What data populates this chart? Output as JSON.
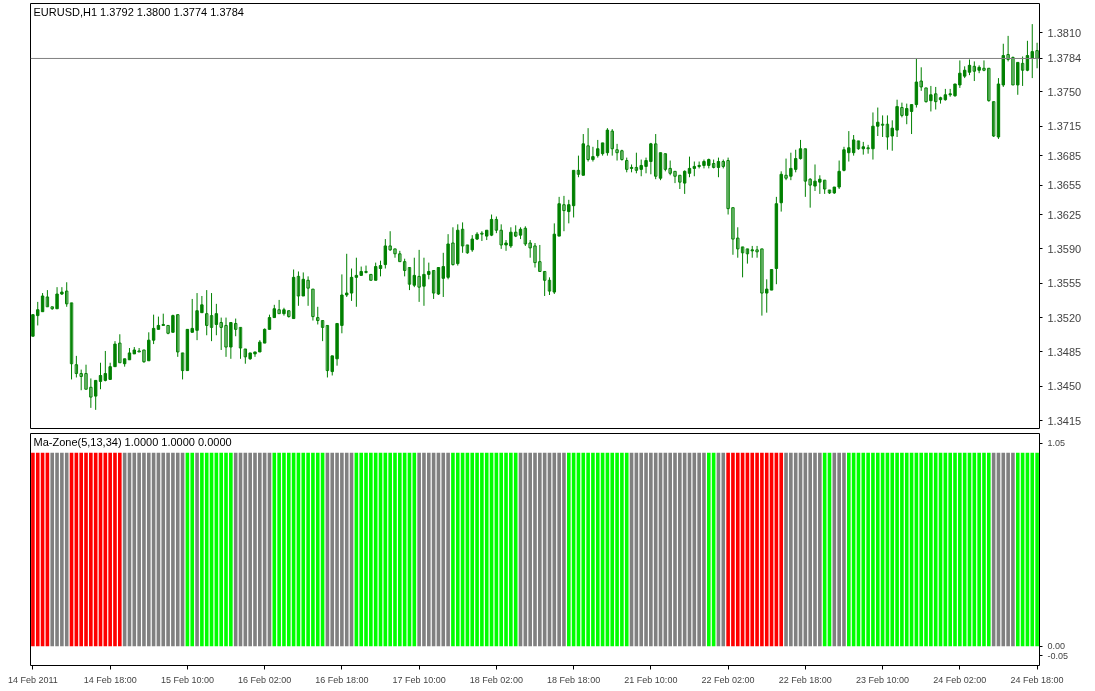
{
  "chart_data": [
    {
      "type": "candlestick",
      "title": "EURUSD,H1  1.3792 1.3800 1.3774 1.3784",
      "color": "#008000",
      "tick_labels": "y",
      "ylim": [
        1.3407,
        1.384
      ],
      "yticks": [
        1.3415,
        {
          "value": 1.345,
          "label": "1.3450"
        },
        1.3485,
        {
          "value": 1.352,
          "label": "1.3520"
        },
        1.3555,
        {
          "value": 1.359,
          "label": "1.3590"
        },
        1.3625,
        1.3655,
        1.3685,
        1.3715,
        {
          "value": 1.375,
          "label": "1.3750"
        },
        {
          "value": 1.381,
          "label": "1.3810"
        }
      ],
      "ref_lines": [
        {
          "axis": "y",
          "value": 1.3784,
          "label": "1.3784",
          "color": "#808080"
        }
      ],
      "categories": [
        null,
        null,
        null,
        null,
        null,
        null,
        null,
        null,
        null,
        null,
        null,
        null,
        null,
        null,
        null,
        null,
        null,
        null,
        null,
        null,
        null,
        null,
        null,
        null,
        null,
        null,
        null,
        null,
        null,
        null,
        null,
        null,
        null,
        null,
        null,
        null,
        null,
        null,
        null,
        null,
        null,
        null,
        null,
        null,
        null,
        null,
        null,
        null,
        null,
        null,
        null,
        null,
        null,
        null,
        null,
        null,
        null,
        null,
        null,
        null,
        null,
        null,
        null,
        null,
        null,
        null,
        null,
        null,
        null,
        null,
        null,
        null,
        null,
        null,
        null,
        null,
        null,
        null,
        null,
        null,
        null,
        null,
        null,
        null,
        null,
        null,
        null,
        null,
        null,
        null,
        null,
        null,
        null,
        null,
        null,
        null,
        null,
        null,
        null,
        null,
        null,
        null,
        null,
        null,
        null,
        null,
        null,
        null,
        null,
        null,
        null,
        null,
        null,
        null,
        null,
        null,
        null,
        null,
        null,
        null,
        null,
        null,
        null,
        null,
        null,
        null,
        null,
        null,
        null,
        null,
        null,
        null,
        null,
        null,
        null,
        null,
        null,
        null,
        null,
        null,
        null,
        null,
        null,
        null,
        null,
        null,
        null,
        null,
        null,
        null,
        null,
        null,
        null,
        null,
        null,
        null,
        null,
        null,
        null,
        null,
        null,
        null,
        null,
        null,
        null,
        null,
        null,
        null,
        null,
        null,
        null,
        null,
        null,
        null,
        null,
        null,
        null,
        null,
        null,
        null,
        null,
        null,
        null,
        null,
        null,
        null,
        null,
        null,
        null,
        null,
        null,
        null,
        null,
        null,
        null,
        null,
        null,
        null,
        null,
        null,
        null,
        null,
        null,
        null,
        null,
        null,
        null,
        null,
        null
      ],
      "ohlc": [
        [
          1.3501,
          1.3523,
          1.3501,
          1.3523
        ],
        [
          1.3522,
          1.3536,
          1.3512,
          1.3528
        ],
        [
          1.3526,
          1.3545,
          1.3526,
          1.3542
        ],
        [
          1.3541,
          1.3548,
          1.3531,
          1.3531
        ],
        [
          1.3531,
          1.3531,
          1.3528,
          1.3529
        ],
        [
          1.3529,
          1.3551,
          1.3529,
          1.3544
        ],
        [
          1.3544,
          1.3551,
          1.3543,
          1.3546
        ],
        [
          1.3547,
          1.3556,
          1.3531,
          1.3534
        ],
        [
          1.3535,
          1.3535,
          1.3457,
          1.3473
        ],
        [
          1.3472,
          1.3481,
          1.3459,
          1.3463
        ],
        [
          1.3463,
          1.3467,
          1.3446,
          1.346
        ],
        [
          1.3463,
          1.3472,
          1.3447,
          1.3447
        ],
        [
          1.3449,
          1.3458,
          1.3428,
          1.3439
        ],
        [
          1.344,
          1.3456,
          1.3426,
          1.3456
        ],
        [
          1.3455,
          1.3474,
          1.3447,
          1.3461
        ],
        [
          1.3456,
          1.3486,
          1.3455,
          1.3463
        ],
        [
          1.3457,
          1.3474,
          1.3457,
          1.347
        ],
        [
          1.347,
          1.3496,
          1.347,
          1.3493
        ],
        [
          1.3494,
          1.3503,
          1.3474,
          1.3474
        ],
        [
          1.3473,
          1.3478,
          1.347,
          1.3478
        ],
        [
          1.3477,
          1.3489,
          1.3477,
          1.3484
        ],
        [
          1.3483,
          1.349,
          1.3483,
          1.3487
        ],
        [
          1.3486,
          1.3489,
          1.3485,
          1.3485
        ],
        [
          1.3487,
          1.3487,
          1.3474,
          1.3475
        ],
        [
          1.3476,
          1.3505,
          1.3476,
          1.3497
        ],
        [
          1.3497,
          1.3523,
          1.3493,
          1.3509
        ],
        [
          1.3508,
          1.3521,
          1.3508,
          1.3512
        ],
        [
          1.3512,
          1.3524,
          1.3512,
          1.3513
        ],
        [
          1.3512,
          1.3512,
          1.3503,
          1.3504
        ],
        [
          1.3505,
          1.3523,
          1.3505,
          1.3522
        ],
        [
          1.3523,
          1.3523,
          1.348,
          1.3485
        ],
        [
          1.3484,
          1.3484,
          1.3457,
          1.3466
        ],
        [
          1.3466,
          1.3508,
          1.3466,
          1.3508
        ],
        [
          1.3505,
          1.3539,
          1.3505,
          1.3509
        ],
        [
          1.3507,
          1.3545,
          1.3497,
          1.3527
        ],
        [
          1.3525,
          1.3542,
          1.3525,
          1.3533
        ],
        [
          1.3524,
          1.3548,
          1.3502,
          1.3512
        ],
        [
          1.3522,
          1.3545,
          1.3496,
          1.351
        ],
        [
          1.3513,
          1.3534,
          1.3502,
          1.3524
        ],
        [
          1.3515,
          1.352,
          1.3487,
          1.351
        ],
        [
          1.3512,
          1.352,
          1.348,
          1.349
        ],
        [
          1.349,
          1.3515,
          1.3478,
          1.3515
        ],
        [
          1.3514,
          1.3519,
          1.3501,
          1.3508
        ],
        [
          1.351,
          1.351,
          1.3478,
          1.3489
        ],
        [
          1.3488,
          1.3488,
          1.3473,
          1.348
        ],
        [
          1.3478,
          1.3484,
          1.3477,
          1.3484
        ],
        [
          1.3483,
          1.3485,
          1.348,
          1.3485
        ],
        [
          1.3485,
          1.3497,
          1.3485,
          1.3495
        ],
        [
          1.3494,
          1.3509,
          1.3494,
          1.3508
        ],
        [
          1.3508,
          1.3523,
          1.3508,
          1.352
        ],
        [
          1.352,
          1.3533,
          1.352,
          1.3529
        ],
        [
          1.3528,
          1.3538,
          1.3524,
          1.3524
        ],
        [
          1.3524,
          1.353,
          1.3522,
          1.3528
        ],
        [
          1.3527,
          1.3527,
          1.352,
          1.3521
        ],
        [
          1.3519,
          1.3569,
          1.3519,
          1.3561
        ],
        [
          1.3562,
          1.3567,
          1.3532,
          1.3542
        ],
        [
          1.3542,
          1.3566,
          1.3542,
          1.3559
        ],
        [
          1.3558,
          1.3562,
          1.3532,
          1.355
        ],
        [
          1.3549,
          1.3549,
          1.3517,
          1.3521
        ],
        [
          1.352,
          1.3531,
          1.3513,
          1.3517
        ],
        [
          1.3517,
          1.3517,
          1.3496,
          1.351
        ],
        [
          1.3512,
          1.3512,
          1.3459,
          1.3466
        ],
        [
          1.3465,
          1.3481,
          1.3461,
          1.3481
        ],
        [
          1.3478,
          1.3514,
          1.3471,
          1.3514
        ],
        [
          1.3512,
          1.3564,
          1.3504,
          1.3543
        ],
        [
          1.3543,
          1.3585,
          1.3541,
          1.3545
        ],
        [
          1.3545,
          1.357,
          1.3537,
          1.3561
        ],
        [
          1.3561,
          1.3581,
          1.3531,
          1.3563
        ],
        [
          1.3563,
          1.3572,
          1.3563,
          1.3567
        ],
        [
          1.3567,
          1.3573,
          1.3565,
          1.3566
        ],
        [
          1.3564,
          1.3564,
          1.3558,
          1.3558
        ],
        [
          1.3558,
          1.3576,
          1.3558,
          1.3572
        ],
        [
          1.357,
          1.3578,
          1.3562,
          1.3573
        ],
        [
          1.3574,
          1.36,
          1.357,
          1.3593
        ],
        [
          1.3593,
          1.3608,
          1.3588,
          1.3589
        ],
        [
          1.359,
          1.359,
          1.3581,
          1.3585
        ],
        [
          1.3585,
          1.3588,
          1.3577,
          1.3577
        ],
        [
          1.3577,
          1.358,
          1.3562,
          1.3568
        ],
        [
          1.3571,
          1.3571,
          1.3548,
          1.3554
        ],
        [
          1.3553,
          1.3581,
          1.3551,
          1.3563
        ],
        [
          1.3562,
          1.3589,
          1.3536,
          1.3551
        ],
        [
          1.3552,
          1.3581,
          1.3532,
          1.3564
        ],
        [
          1.3564,
          1.3576,
          1.3559,
          1.3567
        ],
        [
          1.3568,
          1.3568,
          1.3539,
          1.3545
        ],
        [
          1.3544,
          1.3571,
          1.3543,
          1.3571
        ],
        [
          1.356,
          1.3586,
          1.3541,
          1.3572
        ],
        [
          1.3561,
          1.3605,
          1.3559,
          1.3595
        ],
        [
          1.3596,
          1.3612,
          1.3573,
          1.3574
        ],
        [
          1.3575,
          1.3615,
          1.3573,
          1.3609
        ],
        [
          1.361,
          1.3617,
          1.3586,
          1.3593
        ],
        [
          1.3594,
          1.3594,
          1.3585,
          1.3586
        ],
        [
          1.3589,
          1.3604,
          1.3587,
          1.36
        ],
        [
          1.36,
          1.3607,
          1.3599,
          1.3605
        ],
        [
          1.3606,
          1.3608,
          1.3598,
          1.3605
        ],
        [
          1.3603,
          1.3609,
          1.3599,
          1.3609
        ],
        [
          1.3604,
          1.3625,
          1.3603,
          1.362
        ],
        [
          1.362,
          1.3623,
          1.3606,
          1.3609
        ],
        [
          1.3609,
          1.3615,
          1.359,
          1.3594
        ],
        [
          1.3594,
          1.3599,
          1.3588,
          1.3596
        ],
        [
          1.3593,
          1.3612,
          1.3591,
          1.3607
        ],
        [
          1.3607,
          1.3614,
          1.3602,
          1.3603
        ],
        [
          1.3604,
          1.3612,
          1.36,
          1.361
        ],
        [
          1.3611,
          1.3613,
          1.3593,
          1.3595
        ],
        [
          1.3596,
          1.3599,
          1.3581,
          1.3591
        ],
        [
          1.3593,
          1.3596,
          1.3571,
          1.3576
        ],
        [
          1.3577,
          1.3594,
          1.3567,
          1.3567
        ],
        [
          1.3567,
          1.3567,
          1.3542,
          1.3558
        ],
        [
          1.3558,
          1.3561,
          1.3543,
          1.3547
        ],
        [
          1.3546,
          1.3616,
          1.3544,
          1.3605
        ],
        [
          1.3603,
          1.3643,
          1.3603,
          1.3636
        ],
        [
          1.3635,
          1.3644,
          1.3608,
          1.3629
        ],
        [
          1.3628,
          1.364,
          1.3616,
          1.3635
        ],
        [
          1.3634,
          1.367,
          1.3622,
          1.367
        ],
        [
          1.367,
          1.3685,
          1.3663,
          1.3666
        ],
        [
          1.3665,
          1.3707,
          1.3665,
          1.3697
        ],
        [
          1.3695,
          1.3713,
          1.3679,
          1.3681
        ],
        [
          1.3681,
          1.3694,
          1.3679,
          1.3684
        ],
        [
          1.3685,
          1.3701,
          1.3683,
          1.3692
        ],
        [
          1.3687,
          1.3698,
          1.3685,
          1.3698
        ],
        [
          1.3688,
          1.3713,
          1.3685,
          1.3711
        ],
        [
          1.371,
          1.3712,
          1.3685,
          1.3692
        ],
        [
          1.3691,
          1.3697,
          1.368,
          1.3688
        ],
        [
          1.369,
          1.3691,
          1.368,
          1.3681
        ],
        [
          1.368,
          1.3683,
          1.3668,
          1.3671
        ],
        [
          1.3672,
          1.3676,
          1.3668,
          1.3673
        ],
        [
          1.3673,
          1.3688,
          1.3667,
          1.367
        ],
        [
          1.3671,
          1.3681,
          1.3664,
          1.3675
        ],
        [
          1.3674,
          1.3683,
          1.3667,
          1.368
        ],
        [
          1.3679,
          1.3698,
          1.3666,
          1.3697
        ],
        [
          1.3697,
          1.3707,
          1.3661,
          1.3664
        ],
        [
          1.3662,
          1.3688,
          1.366,
          1.3688
        ],
        [
          1.3687,
          1.3687,
          1.3669,
          1.3671
        ],
        [
          1.3672,
          1.368,
          1.3665,
          1.3667
        ],
        [
          1.3669,
          1.3669,
          1.3657,
          1.3664
        ],
        [
          1.3665,
          1.3665,
          1.3651,
          1.3658
        ],
        [
          1.3657,
          1.367,
          1.3646,
          1.3669
        ],
        [
          1.3667,
          1.3684,
          1.3663,
          1.3672
        ],
        [
          1.3672,
          1.3679,
          1.3664,
          1.3674
        ],
        [
          1.3674,
          1.3679,
          1.3672,
          1.3675
        ],
        [
          1.3675,
          1.3681,
          1.3672,
          1.3679
        ],
        [
          1.3675,
          1.3682,
          1.3672,
          1.3681
        ],
        [
          1.3677,
          1.3681,
          1.3672,
          1.3673
        ],
        [
          1.3673,
          1.3683,
          1.3663,
          1.3679
        ],
        [
          1.3679,
          1.3681,
          1.3672,
          1.3674
        ],
        [
          1.368,
          1.3683,
          1.3625,
          1.3631
        ],
        [
          1.3632,
          1.3632,
          1.3584,
          1.36
        ],
        [
          1.3601,
          1.3612,
          1.3581,
          1.359
        ],
        [
          1.3592,
          1.3592,
          1.3561,
          1.3586
        ],
        [
          1.359,
          1.359,
          1.3575,
          1.3585
        ],
        [
          1.3588,
          1.3593,
          1.3581,
          1.3589
        ],
        [
          1.3589,
          1.3593,
          1.3581,
          1.3587
        ],
        [
          1.359,
          1.359,
          1.3522,
          1.3545
        ],
        [
          1.3545,
          1.3559,
          1.3525,
          1.3549
        ],
        [
          1.3548,
          1.3569,
          1.3548,
          1.3569
        ],
        [
          1.357,
          1.3643,
          1.3554,
          1.3636
        ],
        [
          1.3637,
          1.3669,
          1.3628,
          1.3666
        ],
        [
          1.3665,
          1.3682,
          1.366,
          1.3662
        ],
        [
          1.3664,
          1.3688,
          1.366,
          1.3672
        ],
        [
          1.3671,
          1.3691,
          1.3668,
          1.3682
        ],
        [
          1.3682,
          1.3701,
          1.3681,
          1.3692
        ],
        [
          1.3692,
          1.3692,
          1.3643,
          1.3659
        ],
        [
          1.3661,
          1.3662,
          1.3632,
          1.3655
        ],
        [
          1.3654,
          1.3676,
          1.3649,
          1.3659
        ],
        [
          1.3658,
          1.3665,
          1.3646,
          1.3661
        ],
        [
          1.366,
          1.366,
          1.3646,
          1.3651
        ],
        [
          1.365,
          1.365,
          1.3646,
          1.3647
        ],
        [
          1.3647,
          1.3653,
          1.3646,
          1.3653
        ],
        [
          1.3653,
          1.368,
          1.3651,
          1.3669
        ],
        [
          1.367,
          1.3694,
          1.3669,
          1.3691
        ],
        [
          1.3688,
          1.371,
          1.3679,
          1.3693
        ],
        [
          1.3688,
          1.3706,
          1.3685,
          1.3701
        ],
        [
          1.37,
          1.37,
          1.3691,
          1.3692
        ],
        [
          1.3692,
          1.3699,
          1.3686,
          1.3694
        ],
        [
          1.3693,
          1.3696,
          1.3687,
          1.3692
        ],
        [
          1.3692,
          1.3729,
          1.3681,
          1.3715
        ],
        [
          1.3715,
          1.3734,
          1.3705,
          1.3719
        ],
        [
          1.3717,
          1.3726,
          1.3704,
          1.3716
        ],
        [
          1.3717,
          1.3726,
          1.3691,
          1.3704
        ],
        [
          1.3705,
          1.3721,
          1.369,
          1.3713
        ],
        [
          1.3711,
          1.3742,
          1.3704,
          1.3735
        ],
        [
          1.3734,
          1.3739,
          1.3724,
          1.3726
        ],
        [
          1.3726,
          1.3738,
          1.3717,
          1.3733
        ],
        [
          1.373,
          1.3737,
          1.3707,
          1.3737
        ],
        [
          1.3737,
          1.3784,
          1.3734,
          1.376
        ],
        [
          1.3761,
          1.3775,
          1.3751,
          1.3755
        ],
        [
          1.3754,
          1.3754,
          1.3739,
          1.374
        ],
        [
          1.3741,
          1.3756,
          1.373,
          1.3747
        ],
        [
          1.3748,
          1.3755,
          1.3732,
          1.374
        ],
        [
          1.3742,
          1.3745,
          1.3738,
          1.3744
        ],
        [
          1.3742,
          1.3753,
          1.3741,
          1.3747
        ],
        [
          1.3747,
          1.3753,
          1.3745,
          1.3748
        ],
        [
          1.3746,
          1.3758,
          1.3745,
          1.3758
        ],
        [
          1.3757,
          1.3782,
          1.3754,
          1.3769
        ],
        [
          1.3766,
          1.3776,
          1.3764,
          1.3772
        ],
        [
          1.377,
          1.3783,
          1.3767,
          1.3777
        ],
        [
          1.3776,
          1.3781,
          1.3761,
          1.3771
        ],
        [
          1.3772,
          1.3777,
          1.3769,
          1.3775
        ],
        [
          1.3774,
          1.3782,
          1.3771,
          1.3772
        ],
        [
          1.3774,
          1.3774,
          1.374,
          1.3741
        ],
        [
          1.374,
          1.374,
          1.3704,
          1.3705
        ],
        [
          1.3704,
          1.3764,
          1.3702,
          1.3758
        ],
        [
          1.3757,
          1.3799,
          1.3755,
          1.3787
        ],
        [
          1.3788,
          1.3807,
          1.3781,
          1.3783
        ],
        [
          1.3785,
          1.3786,
          1.3757,
          1.3757
        ],
        [
          1.3757,
          1.378,
          1.3747,
          1.378
        ],
        [
          1.3779,
          1.3786,
          1.3756,
          1.3772
        ],
        [
          1.3772,
          1.3802,
          1.3771,
          1.3787
        ],
        [
          1.3784,
          1.3819,
          1.3764,
          1.3791
        ],
        [
          1.3792,
          1.38,
          1.3774,
          1.3784
        ]
      ]
    },
    {
      "type": "bar",
      "title": "Ma-Zone(5,13,34) 1.0000 1.0000 0.0000",
      "ylim": [
        -0.1,
        1.1
      ],
      "yticks": [
        1.05,
        {
          "value": 0,
          "label": "0.00"
        },
        -0.05
      ],
      "categories": [
        "14 Feb 2011",
        null,
        null,
        null,
        null,
        null,
        null,
        null,
        null,
        null,
        null,
        null,
        null,
        null,
        null,
        null,
        "14 Feb 18:00",
        null,
        null,
        null,
        null,
        null,
        null,
        null,
        null,
        null,
        null,
        null,
        null,
        null,
        null,
        null,
        "15 Feb 10:00",
        null,
        null,
        null,
        null,
        null,
        null,
        null,
        null,
        null,
        null,
        null,
        null,
        null,
        null,
        null,
        "16 Feb 02:00",
        null,
        null,
        null,
        null,
        null,
        null,
        null,
        null,
        null,
        null,
        null,
        null,
        null,
        null,
        null,
        "16 Feb 18:00",
        null,
        null,
        null,
        null,
        null,
        null,
        null,
        null,
        null,
        null,
        null,
        null,
        null,
        null,
        null,
        "17 Feb 10:00",
        null,
        null,
        null,
        null,
        null,
        null,
        null,
        null,
        null,
        null,
        null,
        null,
        null,
        null,
        null,
        "18 Feb 02:00",
        null,
        null,
        null,
        null,
        null,
        null,
        null,
        null,
        null,
        null,
        null,
        null,
        null,
        null,
        null,
        "18 Feb 18:00",
        null,
        null,
        null,
        null,
        null,
        null,
        null,
        null,
        null,
        null,
        null,
        null,
        null,
        null,
        null,
        "21 Feb 10:00",
        null,
        null,
        null,
        null,
        null,
        null,
        null,
        null,
        null,
        null,
        null,
        null,
        null,
        null,
        null,
        "22 Feb 02:00",
        null,
        null,
        null,
        null,
        null,
        null,
        null,
        null,
        null,
        null,
        null,
        null,
        null,
        null,
        null,
        "22 Feb 18:00",
        null,
        null,
        null,
        null,
        null,
        null,
        null,
        null,
        null,
        null,
        null,
        null,
        null,
        null,
        null,
        "23 Feb 10:00",
        null,
        null,
        null,
        null,
        null,
        null,
        null,
        null,
        null,
        null,
        null,
        null,
        null,
        null,
        null,
        "24 Feb 02:00",
        null,
        null,
        null,
        null,
        null,
        null,
        null,
        null,
        null,
        null,
        null,
        null,
        null,
        null,
        null,
        "24 Feb 18:00"
      ],
      "values": [
        1,
        1,
        1,
        1,
        1,
        1,
        1,
        1,
        1,
        1,
        1,
        1,
        1,
        1,
        1,
        1,
        1,
        1,
        1,
        1,
        1,
        1,
        1,
        1,
        1,
        1,
        1,
        1,
        1,
        1,
        1,
        1,
        1,
        1,
        1,
        1,
        1,
        1,
        1,
        1,
        1,
        1,
        1,
        1,
        1,
        1,
        1,
        1,
        1,
        1,
        1,
        1,
        1,
        1,
        1,
        1,
        1,
        1,
        1,
        1,
        1,
        1,
        1,
        1,
        1,
        1,
        1,
        1,
        1,
        1,
        1,
        1,
        1,
        1,
        1,
        1,
        1,
        1,
        1,
        1,
        1,
        1,
        1,
        1,
        1,
        1,
        1,
        1,
        1,
        1,
        1,
        1,
        1,
        1,
        1,
        1,
        1,
        1,
        1,
        1,
        1,
        1,
        1,
        1,
        1,
        1,
        1,
        1,
        1,
        1,
        1,
        1,
        1,
        1,
        1,
        1,
        1,
        1,
        1,
        1,
        1,
        1,
        1,
        1,
        1,
        1,
        1,
        1,
        1,
        1,
        1,
        1,
        1,
        1,
        1,
        1,
        1,
        1,
        1,
        1,
        1,
        1,
        1,
        1,
        1,
        1,
        1,
        1,
        1,
        1,
        1,
        1,
        1,
        1,
        1,
        1,
        1,
        1,
        1,
        1,
        1,
        1,
        1,
        1,
        1,
        1,
        1,
        1,
        1,
        1,
        1,
        1,
        1,
        1,
        1,
        1,
        1,
        1,
        1,
        1,
        1,
        1,
        1,
        1,
        1,
        1,
        1,
        1,
        1,
        1,
        1,
        1,
        1,
        1,
        1,
        1,
        1,
        1,
        1,
        1,
        1,
        1,
        1,
        1,
        1,
        1,
        1,
        1,
        1
      ],
      "colors": [
        "#ff0000",
        "#ff0000",
        "#ff0000",
        "#ff0000",
        "#808080",
        "#808080",
        "#808080",
        "#808080",
        "#ff0000",
        "#ff0000",
        "#ff0000",
        "#ff0000",
        "#ff0000",
        "#ff0000",
        "#ff0000",
        "#ff0000",
        "#ff0000",
        "#ff0000",
        "#ff0000",
        "#808080",
        "#808080",
        "#808080",
        "#808080",
        "#808080",
        "#808080",
        "#808080",
        "#808080",
        "#808080",
        "#808080",
        "#808080",
        "#808080",
        "#808080",
        "#00ff00",
        "#00ff00",
        "#808080",
        "#00ff00",
        "#00ff00",
        "#00ff00",
        "#00ff00",
        "#00ff00",
        "#00ff00",
        "#00ff00",
        "#808080",
        "#808080",
        "#808080",
        "#808080",
        "#808080",
        "#808080",
        "#808080",
        "#808080",
        "#00ff00",
        "#00ff00",
        "#00ff00",
        "#00ff00",
        "#00ff00",
        "#00ff00",
        "#00ff00",
        "#00ff00",
        "#00ff00",
        "#00ff00",
        "#00ff00",
        "#808080",
        "#808080",
        "#808080",
        "#808080",
        "#808080",
        "#808080",
        "#00ff00",
        "#00ff00",
        "#00ff00",
        "#00ff00",
        "#00ff00",
        "#00ff00",
        "#00ff00",
        "#00ff00",
        "#00ff00",
        "#00ff00",
        "#00ff00",
        "#00ff00",
        "#00ff00",
        "#808080",
        "#808080",
        "#808080",
        "#808080",
        "#808080",
        "#808080",
        "#808080",
        "#00ff00",
        "#00ff00",
        "#00ff00",
        "#00ff00",
        "#00ff00",
        "#00ff00",
        "#00ff00",
        "#00ff00",
        "#00ff00",
        "#00ff00",
        "#00ff00",
        "#00ff00",
        "#00ff00",
        "#00ff00",
        "#808080",
        "#808080",
        "#808080",
        "#808080",
        "#808080",
        "#808080",
        "#808080",
        "#808080",
        "#808080",
        "#808080",
        "#00ff00",
        "#00ff00",
        "#00ff00",
        "#00ff00",
        "#00ff00",
        "#00ff00",
        "#00ff00",
        "#00ff00",
        "#00ff00",
        "#00ff00",
        "#00ff00",
        "#00ff00",
        "#00ff00",
        "#808080",
        "#808080",
        "#808080",
        "#808080",
        "#808080",
        "#808080",
        "#808080",
        "#808080",
        "#808080",
        "#808080",
        "#808080",
        "#808080",
        "#808080",
        "#808080",
        "#808080",
        "#808080",
        "#00ff00",
        "#00ff00",
        "#808080",
        "#808080",
        "#ff0000",
        "#ff0000",
        "#ff0000",
        "#ff0000",
        "#ff0000",
        "#ff0000",
        "#ff0000",
        "#ff0000",
        "#ff0000",
        "#ff0000",
        "#ff0000",
        "#ff0000",
        "#808080",
        "#808080",
        "#808080",
        "#808080",
        "#808080",
        "#808080",
        "#808080",
        "#808080",
        "#00ff00",
        "#00ff00",
        "#808080",
        "#808080",
        "#808080",
        "#00ff00",
        "#00ff00",
        "#00ff00",
        "#00ff00",
        "#00ff00",
        "#00ff00",
        "#00ff00",
        "#00ff00",
        "#00ff00",
        "#00ff00",
        "#00ff00",
        "#00ff00",
        "#00ff00",
        "#00ff00",
        "#00ff00",
        "#00ff00",
        "#00ff00",
        "#00ff00",
        "#00ff00",
        "#00ff00",
        "#00ff00",
        "#00ff00",
        "#00ff00",
        "#00ff00",
        "#00ff00",
        "#00ff00",
        "#00ff00",
        "#00ff00",
        "#00ff00",
        "#00ff00",
        "#808080",
        "#808080",
        "#808080",
        "#808080",
        "#808080",
        "#00ff00",
        "#00ff00",
        "#00ff00",
        "#00ff00",
        "#00ff00"
      ]
    }
  ]
}
